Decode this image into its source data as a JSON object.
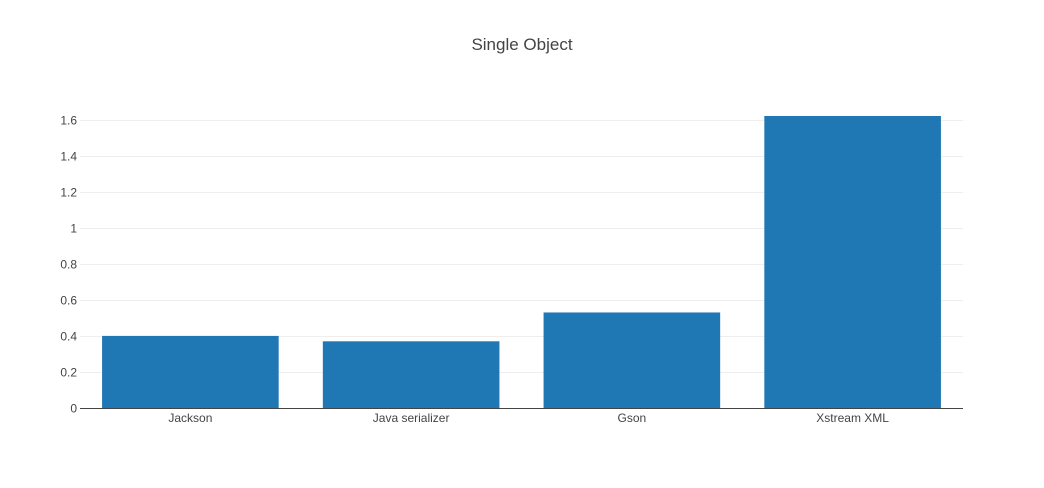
{
  "chart_data": {
    "type": "bar",
    "title": "Single Object",
    "categories": [
      "Jackson",
      "Java serializer",
      "Gson",
      "Xstream XML"
    ],
    "values": [
      0.4,
      0.37,
      0.53,
      1.62
    ],
    "xlabel": "",
    "ylabel": "",
    "ylim": [
      0,
      1.62
    ],
    "yticks": [
      0,
      0.2,
      0.4,
      0.6,
      0.8,
      1,
      1.2,
      1.4,
      1.6
    ],
    "ytick_labels": [
      "0",
      "0.2",
      "0.4",
      "0.6",
      "0.8",
      "1",
      "1.2",
      "1.4",
      "1.6"
    ],
    "grid": true,
    "legend": "none",
    "bar_color": "#1f77b4"
  }
}
